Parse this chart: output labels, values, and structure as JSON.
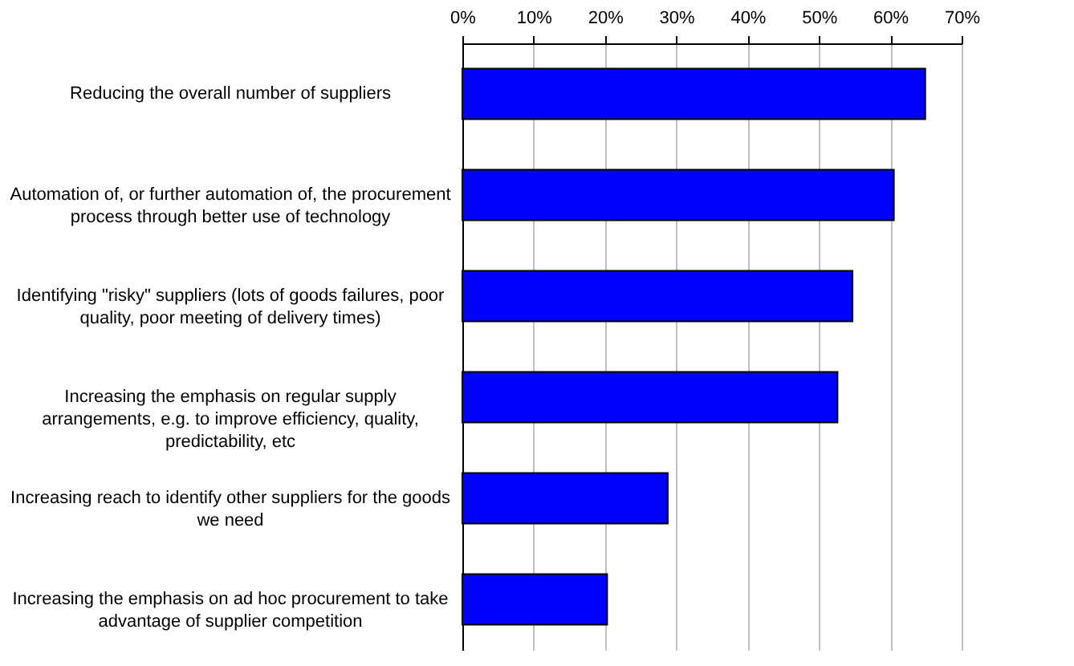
{
  "chart_data": {
    "type": "bar",
    "orientation": "horizontal",
    "categories": [
      "Reducing the overall number of suppliers",
      "Automation of, or further automation of, the procurement process through better use of technology",
      "Identifying \"risky\" suppliers (lots of goods failures, poor quality, poor meeting of delivery times)",
      "Increasing the emphasis on regular supply arrangements, e.g. to improve efficiency, quality, predictability, etc",
      "Increasing reach to identify other suppliers for the goods we need",
      "Increasing the emphasis on ad hoc procurement to take advantage of supplier competition"
    ],
    "values": [
      64.9,
      60.5,
      54.7,
      52.6,
      28.8,
      20.3
    ],
    "color": "#0000ff",
    "xlim": [
      0,
      70
    ],
    "xticks": [
      {
        "value": 0,
        "label": "0%"
      },
      {
        "value": 10,
        "label": "10%"
      },
      {
        "value": 20,
        "label": "20%"
      },
      {
        "value": 30,
        "label": "30%"
      },
      {
        "value": 40,
        "label": "40%"
      },
      {
        "value": 50,
        "label": "50%"
      },
      {
        "value": 60,
        "label": "60%"
      },
      {
        "value": 70,
        "label": "70%"
      }
    ],
    "grid": "x"
  }
}
